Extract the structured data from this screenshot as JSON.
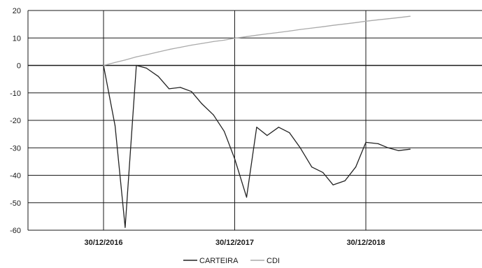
{
  "chart_data": {
    "type": "line",
    "title": "",
    "xlabel": "",
    "ylabel": "",
    "ylim": [
      -60,
      20
    ],
    "yticks": [
      20,
      10,
      0,
      -10,
      -20,
      -30,
      -40,
      -50,
      -60
    ],
    "x_tick_labels": [
      "30/12/2016",
      "30/12/2017",
      "30/12/2018"
    ],
    "grid": "horizontal and vertical",
    "legend_position": "bottom-center",
    "colors": {
      "carteira": "#222222",
      "cdi": "#aaaaaa",
      "grid": "#1a1a1a"
    },
    "series": [
      {
        "name": "CARTEIRA",
        "points": [
          {
            "x": "2016-12-30",
            "y": 0
          },
          {
            "x": "2017-01-31",
            "y": -22
          },
          {
            "x": "2017-02-28",
            "y": -59
          },
          {
            "x": "2017-03-31",
            "y": 0
          },
          {
            "x": "2017-04-28",
            "y": -1
          },
          {
            "x": "2017-05-31",
            "y": -4
          },
          {
            "x": "2017-06-30",
            "y": -8.5
          },
          {
            "x": "2017-07-31",
            "y": -8
          },
          {
            "x": "2017-08-31",
            "y": -9.5
          },
          {
            "x": "2017-09-29",
            "y": -14
          },
          {
            "x": "2017-10-31",
            "y": -18
          },
          {
            "x": "2017-11-30",
            "y": -24
          },
          {
            "x": "2017-12-29",
            "y": -34
          },
          {
            "x": "2018-01-31",
            "y": -48
          },
          {
            "x": "2018-02-28",
            "y": -22.5
          },
          {
            "x": "2018-03-29",
            "y": -25.5
          },
          {
            "x": "2018-04-30",
            "y": -22.5
          },
          {
            "x": "2018-05-30",
            "y": -24.5
          },
          {
            "x": "2018-06-29",
            "y": -30
          },
          {
            "x": "2018-07-31",
            "y": -37
          },
          {
            "x": "2018-08-31",
            "y": -39
          },
          {
            "x": "2018-09-28",
            "y": -43.5
          },
          {
            "x": "2018-10-31",
            "y": -42
          },
          {
            "x": "2018-11-30",
            "y": -37
          },
          {
            "x": "2018-12-28",
            "y": -28
          },
          {
            "x": "2019-01-31",
            "y": -28.5
          },
          {
            "x": "2019-02-28",
            "y": -30
          },
          {
            "x": "2019-03-29",
            "y": -31
          },
          {
            "x": "2019-04-30",
            "y": -30.5
          }
        ]
      },
      {
        "name": "CDI",
        "points": [
          {
            "x": "2016-12-30",
            "y": 0
          },
          {
            "x": "2017-01-31",
            "y": 1.1
          },
          {
            "x": "2017-02-28",
            "y": 2.0
          },
          {
            "x": "2017-03-31",
            "y": 3.1
          },
          {
            "x": "2017-04-28",
            "y": 3.9
          },
          {
            "x": "2017-05-31",
            "y": 4.9
          },
          {
            "x": "2017-06-30",
            "y": 5.8
          },
          {
            "x": "2017-07-31",
            "y": 6.6
          },
          {
            "x": "2017-08-31",
            "y": 7.4
          },
          {
            "x": "2017-09-29",
            "y": 8.0
          },
          {
            "x": "2017-10-31",
            "y": 8.7
          },
          {
            "x": "2017-11-30",
            "y": 9.2
          },
          {
            "x": "2017-12-29",
            "y": 9.9
          },
          {
            "x": "2018-01-31",
            "y": 10.5
          },
          {
            "x": "2018-02-28",
            "y": 11.0
          },
          {
            "x": "2018-03-29",
            "y": 11.5
          },
          {
            "x": "2018-04-30",
            "y": 12.0
          },
          {
            "x": "2018-05-30",
            "y": 12.5
          },
          {
            "x": "2018-06-29",
            "y": 13.1
          },
          {
            "x": "2018-07-31",
            "y": 13.6
          },
          {
            "x": "2018-08-31",
            "y": 14.1
          },
          {
            "x": "2018-09-28",
            "y": 14.6
          },
          {
            "x": "2018-10-31",
            "y": 15.1
          },
          {
            "x": "2018-11-30",
            "y": 15.6
          },
          {
            "x": "2018-12-28",
            "y": 16.1
          },
          {
            "x": "2019-01-31",
            "y": 16.6
          },
          {
            "x": "2019-02-28",
            "y": 17.0
          },
          {
            "x": "2019-03-29",
            "y": 17.4
          },
          {
            "x": "2019-04-30",
            "y": 17.9
          }
        ]
      }
    ]
  }
}
